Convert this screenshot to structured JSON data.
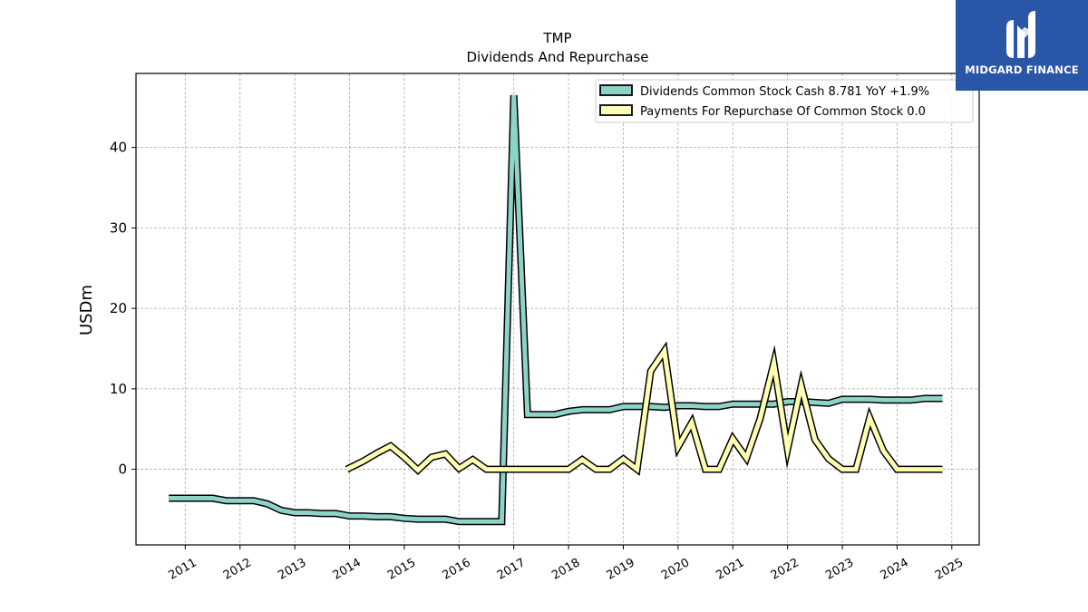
{
  "chart_data": {
    "type": "line",
    "title": "TMP",
    "subtitle": "Dividends And Repurchase",
    "ylabel": "USDm",
    "xlim": [
      2010.1,
      2025.5
    ],
    "ylim": [
      -9.4,
      49.2
    ],
    "x_ticks": [
      2011,
      2012,
      2013,
      2014,
      2015,
      2016,
      2017,
      2018,
      2019,
      2020,
      2021,
      2022,
      2023,
      2024,
      2025
    ],
    "x_tick_labels": [
      "2011",
      "2012",
      "2013",
      "2014",
      "2015",
      "2016",
      "2017",
      "2018",
      "2019",
      "2020",
      "2021",
      "2022",
      "2023",
      "2024",
      "2025"
    ],
    "y_ticks": [
      0,
      10,
      20,
      30,
      40
    ],
    "y_tick_labels": [
      "0",
      "10",
      "20",
      "30",
      "40"
    ],
    "grid": true,
    "legend_position": "top-right",
    "series": [
      {
        "name": "Dividends Common Stock Cash  8.781 YoY +1.9%",
        "color": "#8dd3c7",
        "points": [
          [
            2010.7,
            -3.6
          ],
          [
            2011.0,
            -3.6
          ],
          [
            2011.25,
            -3.6
          ],
          [
            2011.5,
            -3.6
          ],
          [
            2011.75,
            -3.9
          ],
          [
            2012.0,
            -3.9
          ],
          [
            2012.25,
            -3.9
          ],
          [
            2012.5,
            -4.3
          ],
          [
            2012.75,
            -5.1
          ],
          [
            2013.0,
            -5.4
          ],
          [
            2013.25,
            -5.4
          ],
          [
            2013.5,
            -5.5
          ],
          [
            2013.75,
            -5.5
          ],
          [
            2014.0,
            -5.8
          ],
          [
            2014.25,
            -5.8
          ],
          [
            2014.5,
            -5.9
          ],
          [
            2014.75,
            -5.9
          ],
          [
            2015.0,
            -6.1
          ],
          [
            2015.25,
            -6.2
          ],
          [
            2015.5,
            -6.2
          ],
          [
            2015.75,
            -6.2
          ],
          [
            2016.0,
            -6.5
          ],
          [
            2016.25,
            -6.5
          ],
          [
            2016.5,
            -6.5
          ],
          [
            2016.78,
            -6.5
          ],
          [
            2017.0,
            46.5
          ],
          [
            2017.25,
            6.8
          ],
          [
            2017.5,
            6.8
          ],
          [
            2017.75,
            6.8
          ],
          [
            2018.0,
            7.2
          ],
          [
            2018.25,
            7.4
          ],
          [
            2018.5,
            7.4
          ],
          [
            2018.75,
            7.4
          ],
          [
            2019.0,
            7.8
          ],
          [
            2019.25,
            7.8
          ],
          [
            2019.5,
            7.8
          ],
          [
            2019.75,
            7.7
          ],
          [
            2020.0,
            7.9
          ],
          [
            2020.25,
            7.9
          ],
          [
            2020.5,
            7.8
          ],
          [
            2020.75,
            7.8
          ],
          [
            2021.0,
            8.1
          ],
          [
            2021.25,
            8.1
          ],
          [
            2021.5,
            8.1
          ],
          [
            2021.75,
            8.1
          ],
          [
            2022.0,
            8.4
          ],
          [
            2022.25,
            8.4
          ],
          [
            2022.5,
            8.3
          ],
          [
            2022.75,
            8.2
          ],
          [
            2023.0,
            8.7
          ],
          [
            2023.25,
            8.7
          ],
          [
            2023.5,
            8.7
          ],
          [
            2023.75,
            8.6
          ],
          [
            2024.0,
            8.6
          ],
          [
            2024.25,
            8.6
          ],
          [
            2024.5,
            8.8
          ],
          [
            2024.83,
            8.8
          ]
        ]
      },
      {
        "name": "Payments For Repurchase Of Common Stock  0.0",
        "color": "#ffffb3",
        "points": [
          [
            2013.95,
            0.0
          ],
          [
            2014.25,
            1.0
          ],
          [
            2014.5,
            2.0
          ],
          [
            2014.75,
            2.9
          ],
          [
            2015.0,
            1.5
          ],
          [
            2015.25,
            -0.1
          ],
          [
            2015.5,
            1.5
          ],
          [
            2015.75,
            1.9
          ],
          [
            2016.0,
            0.1
          ],
          [
            2016.25,
            1.2
          ],
          [
            2016.5,
            0.0
          ],
          [
            2016.75,
            0.0
          ],
          [
            2017.0,
            0.0
          ],
          [
            2017.25,
            0.0
          ],
          [
            2017.5,
            0.0
          ],
          [
            2017.75,
            0.0
          ],
          [
            2018.0,
            0.0
          ],
          [
            2018.25,
            1.2
          ],
          [
            2018.5,
            0.0
          ],
          [
            2018.75,
            0.0
          ],
          [
            2019.0,
            1.3
          ],
          [
            2019.25,
            0.0
          ],
          [
            2019.5,
            12.2
          ],
          [
            2019.75,
            14.7
          ],
          [
            2020.0,
            2.8
          ],
          [
            2020.25,
            5.8
          ],
          [
            2020.5,
            0.0
          ],
          [
            2020.75,
            0.0
          ],
          [
            2021.0,
            3.8
          ],
          [
            2021.25,
            1.4
          ],
          [
            2021.5,
            6.3
          ],
          [
            2021.75,
            13.2
          ],
          [
            2022.0,
            2.5
          ],
          [
            2022.25,
            10.4
          ],
          [
            2022.5,
            3.7
          ],
          [
            2022.75,
            1.3
          ],
          [
            2023.0,
            0.0
          ],
          [
            2023.25,
            0.0
          ],
          [
            2023.5,
            6.4
          ],
          [
            2023.75,
            2.3
          ],
          [
            2024.0,
            0.0
          ],
          [
            2024.25,
            0.0
          ],
          [
            2024.5,
            0.0
          ],
          [
            2024.83,
            0.0
          ]
        ]
      }
    ]
  },
  "logo": {
    "name": "MIDGARD FINANCE",
    "colors": {
      "background": "#2a56a8",
      "text": "#ffffff"
    }
  }
}
